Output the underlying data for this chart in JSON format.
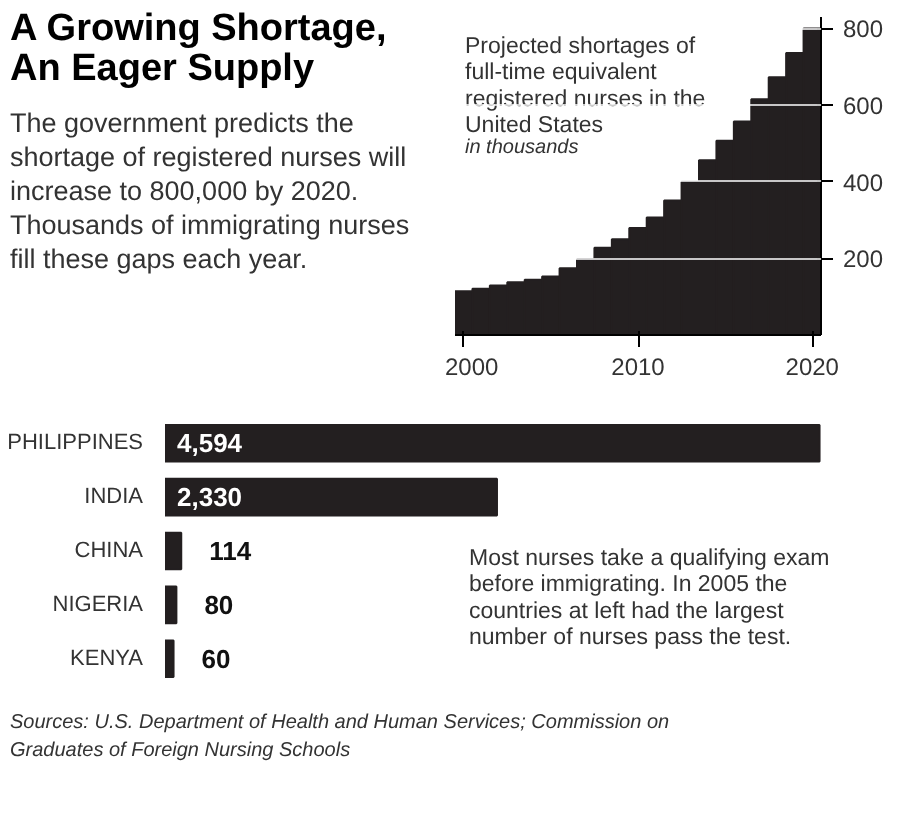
{
  "chart_data": [
    {
      "type": "bar",
      "title": "A Growing Shortage, An Eager Supply",
      "subtitle": "The government predicts the shortage of registered nurses will increase to 800,000 by 2020. Thousands of immigrating nurses fill these gaps each year.",
      "annotations": [
        "Projected shortages of full-time equivalent registered nurses in the United States",
        "in thousands"
      ],
      "x": [
        2000,
        2001,
        2002,
        2003,
        2004,
        2005,
        2006,
        2007,
        2008,
        2009,
        2010,
        2011,
        2012,
        2013,
        2014,
        2015,
        2016,
        2017,
        2018,
        2019,
        2020
      ],
      "values": [
        114,
        121,
        129,
        138,
        144,
        153,
        174,
        198,
        228,
        250,
        279,
        307,
        351,
        400,
        456,
        507,
        557,
        615,
        673,
        736,
        800
      ],
      "color": "#231f20",
      "xlim": [
        1999.5,
        2020.5
      ],
      "xticks": [
        2000,
        2010,
        2020
      ],
      "ylim": [
        0,
        830
      ],
      "yticks": [
        200,
        400,
        600,
        800
      ],
      "grid": "y"
    },
    {
      "type": "bar",
      "orientation": "horizontal",
      "categories": [
        "PHILIPPINES",
        "INDIA",
        "CHINA",
        "NIGERIA",
        "KENYA"
      ],
      "values": [
        4594,
        2330,
        114,
        80,
        60
      ],
      "value_labels": [
        "4,594",
        "2,330",
        "114",
        "80",
        "60"
      ],
      "color": "#231f20",
      "tick_labels": "y",
      "annotations": [
        "Most nurses take a qualifying exam before immigrating. In 2005 the countries at left had the largest number of nurses pass the test.",
        "Sources: U.S. Department of Health and Human Services; Commission on Graduates of Foreign Nursing Schools"
      ]
    }
  ]
}
